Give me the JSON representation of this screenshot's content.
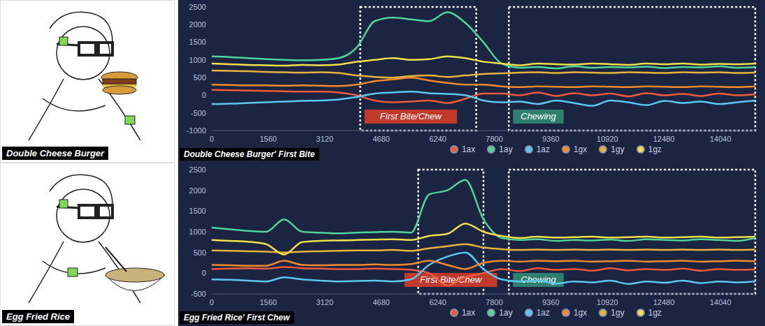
{
  "illustrations": [
    "Double Cheese Burger",
    "Egg Fried Rice"
  ],
  "chart_data": [
    {
      "type": "line",
      "title": "Double Cheese Burger' First Bite",
      "grid": false,
      "legend": "bottom",
      "xlim": [
        0,
        15000
      ],
      "xticks": [
        0,
        1560,
        3120,
        4680,
        6240,
        7800,
        9360,
        10920,
        12480,
        14040
      ],
      "ylim": [
        -1000,
        2500
      ],
      "yticks": [
        -1000,
        -500,
        0,
        500,
        1000,
        1500,
        2000,
        2500
      ],
      "annotations": [
        {
          "text": "First Bite/Chew",
          "x_range": [
            4100,
            7300
          ],
          "color": "#c0392b"
        },
        {
          "text": "Chewing",
          "x_range": [
            8200,
            15000
          ],
          "color": "#2f7f6e"
        }
      ],
      "x": [
        0,
        500,
        1000,
        1500,
        2000,
        2500,
        3000,
        3500,
        4000,
        4500,
        5000,
        5500,
        6000,
        6500,
        7000,
        7500,
        8000,
        8500,
        9000,
        9500,
        10000,
        10500,
        11000,
        11500,
        12000,
        12500,
        13000,
        13500,
        14000,
        14500,
        15000
      ],
      "series": [
        {
          "name": "1ax",
          "color": "#ef5a3c",
          "values": [
            150,
            140,
            130,
            120,
            110,
            100,
            100,
            80,
            0,
            -150,
            -200,
            -180,
            -150,
            -220,
            -100,
            50,
            50,
            0,
            80,
            -20,
            60,
            0,
            50,
            -30,
            60,
            0,
            40,
            -20,
            50,
            0,
            30
          ]
        },
        {
          "name": "1ay",
          "color": "#4fd59b",
          "values": [
            1100,
            1080,
            1050,
            1020,
            1000,
            990,
            1000,
            1050,
            1350,
            2100,
            2200,
            2150,
            2100,
            2350,
            2050,
            1500,
            900,
            780,
            800,
            760,
            820,
            780,
            800,
            790,
            810,
            770,
            800,
            790,
            820,
            780,
            800
          ]
        },
        {
          "name": "1az",
          "color": "#5ac8f0",
          "values": [
            -250,
            -240,
            -220,
            -200,
            -180,
            -160,
            -150,
            -120,
            -50,
            50,
            80,
            100,
            60,
            40,
            0,
            -150,
            -200,
            -180,
            -250,
            -150,
            -220,
            -300,
            -150,
            -200,
            -280,
            -160,
            -220,
            -180,
            -250,
            -200,
            -150
          ]
        },
        {
          "name": "1gx",
          "color": "#f08a2c",
          "values": [
            300,
            290,
            280,
            280,
            270,
            280,
            270,
            260,
            300,
            400,
            450,
            500,
            420,
            350,
            300,
            300,
            250,
            230,
            250,
            240,
            230,
            250,
            240,
            230,
            250,
            240,
            230,
            250,
            240,
            230,
            250
          ]
        },
        {
          "name": "1gy",
          "color": "#e9b23a",
          "values": [
            700,
            690,
            680,
            660,
            650,
            640,
            650,
            630,
            560,
            520,
            500,
            540,
            560,
            520,
            560,
            600,
            620,
            640,
            650,
            630,
            650,
            640,
            630,
            650,
            640,
            630,
            650,
            640,
            650,
            630,
            640
          ]
        },
        {
          "name": "1gz",
          "color": "#f2e04a",
          "values": [
            900,
            880,
            860,
            850,
            840,
            860,
            850,
            870,
            950,
            1000,
            1050,
            1000,
            1020,
            1100,
            1050,
            950,
            900,
            850,
            900,
            880,
            870,
            900,
            880,
            860,
            900,
            880,
            900,
            870,
            890,
            880,
            900
          ]
        }
      ]
    },
    {
      "type": "line",
      "title": "Egg Fried Rice' First Chew",
      "grid": false,
      "legend": "bottom",
      "xlim": [
        0,
        15000
      ],
      "xticks": [
        0,
        1560,
        3120,
        4680,
        6240,
        7800,
        9360,
        10920,
        12480,
        14040
      ],
      "ylim": [
        -500,
        2500
      ],
      "yticks": [
        -500,
        0,
        500,
        1000,
        1500,
        2000,
        2500
      ],
      "annotations": [
        {
          "text": "First Bite/Chew",
          "x_range": [
            5700,
            7500
          ],
          "color": "#c0392b"
        },
        {
          "text": "Chewing",
          "x_range": [
            8200,
            15000
          ],
          "color": "#2f7f6e"
        }
      ],
      "x": [
        0,
        500,
        1000,
        1500,
        2000,
        2500,
        3000,
        3500,
        4000,
        4500,
        5000,
        5500,
        6000,
        6500,
        7000,
        7500,
        8000,
        8500,
        9000,
        9500,
        10000,
        10500,
        11000,
        11500,
        12000,
        12500,
        13000,
        13500,
        14000,
        14500,
        15000
      ],
      "series": [
        {
          "name": "1ax",
          "color": "#ef5a3c",
          "values": [
            100,
            110,
            120,
            110,
            150,
            120,
            110,
            100,
            100,
            110,
            100,
            80,
            0,
            -300,
            -100,
            0,
            100,
            50,
            120,
            80,
            100,
            60,
            120,
            70,
            100,
            80,
            110,
            60,
            100,
            80,
            90
          ]
        },
        {
          "name": "1ay",
          "color": "#4fd59b",
          "values": [
            1100,
            1060,
            1020,
            1000,
            1300,
            1000,
            980,
            960,
            980,
            990,
            1000,
            980,
            1900,
            2000,
            2250,
            1300,
            850,
            800,
            820,
            780,
            800,
            790,
            810,
            780,
            820,
            800,
            790,
            820,
            800,
            780,
            850
          ]
        },
        {
          "name": "1az",
          "color": "#5ac8f0",
          "values": [
            -150,
            -160,
            -180,
            -200,
            -100,
            -150,
            -180,
            -200,
            -190,
            -180,
            -200,
            -150,
            200,
            400,
            500,
            100,
            -150,
            -200,
            -180,
            -250,
            -200,
            -220,
            -180,
            -260,
            -200,
            -230,
            -180,
            -240,
            -200,
            -220,
            -200
          ]
        },
        {
          "name": "1gx",
          "color": "#f08a2c",
          "values": [
            200,
            190,
            180,
            180,
            300,
            200,
            190,
            200,
            200,
            210,
            200,
            220,
            300,
            200,
            100,
            250,
            300,
            280,
            300,
            290,
            300,
            280,
            290,
            300,
            280,
            290,
            300,
            280,
            290,
            300,
            290
          ]
        },
        {
          "name": "1gy",
          "color": "#e9b23a",
          "values": [
            550,
            540,
            530,
            520,
            500,
            520,
            530,
            540,
            550,
            550,
            560,
            540,
            600,
            650,
            700,
            620,
            580,
            560,
            570,
            560,
            570,
            560,
            570,
            560,
            570,
            560,
            570,
            560,
            570,
            560,
            570
          ]
        },
        {
          "name": "1gz",
          "color": "#f2e04a",
          "values": [
            800,
            780,
            760,
            700,
            450,
            750,
            780,
            790,
            800,
            810,
            820,
            800,
            900,
            950,
            1200,
            1000,
            900,
            850,
            880,
            860,
            870,
            880,
            860,
            870,
            880,
            860,
            870,
            880,
            860,
            870,
            880
          ]
        }
      ]
    }
  ]
}
